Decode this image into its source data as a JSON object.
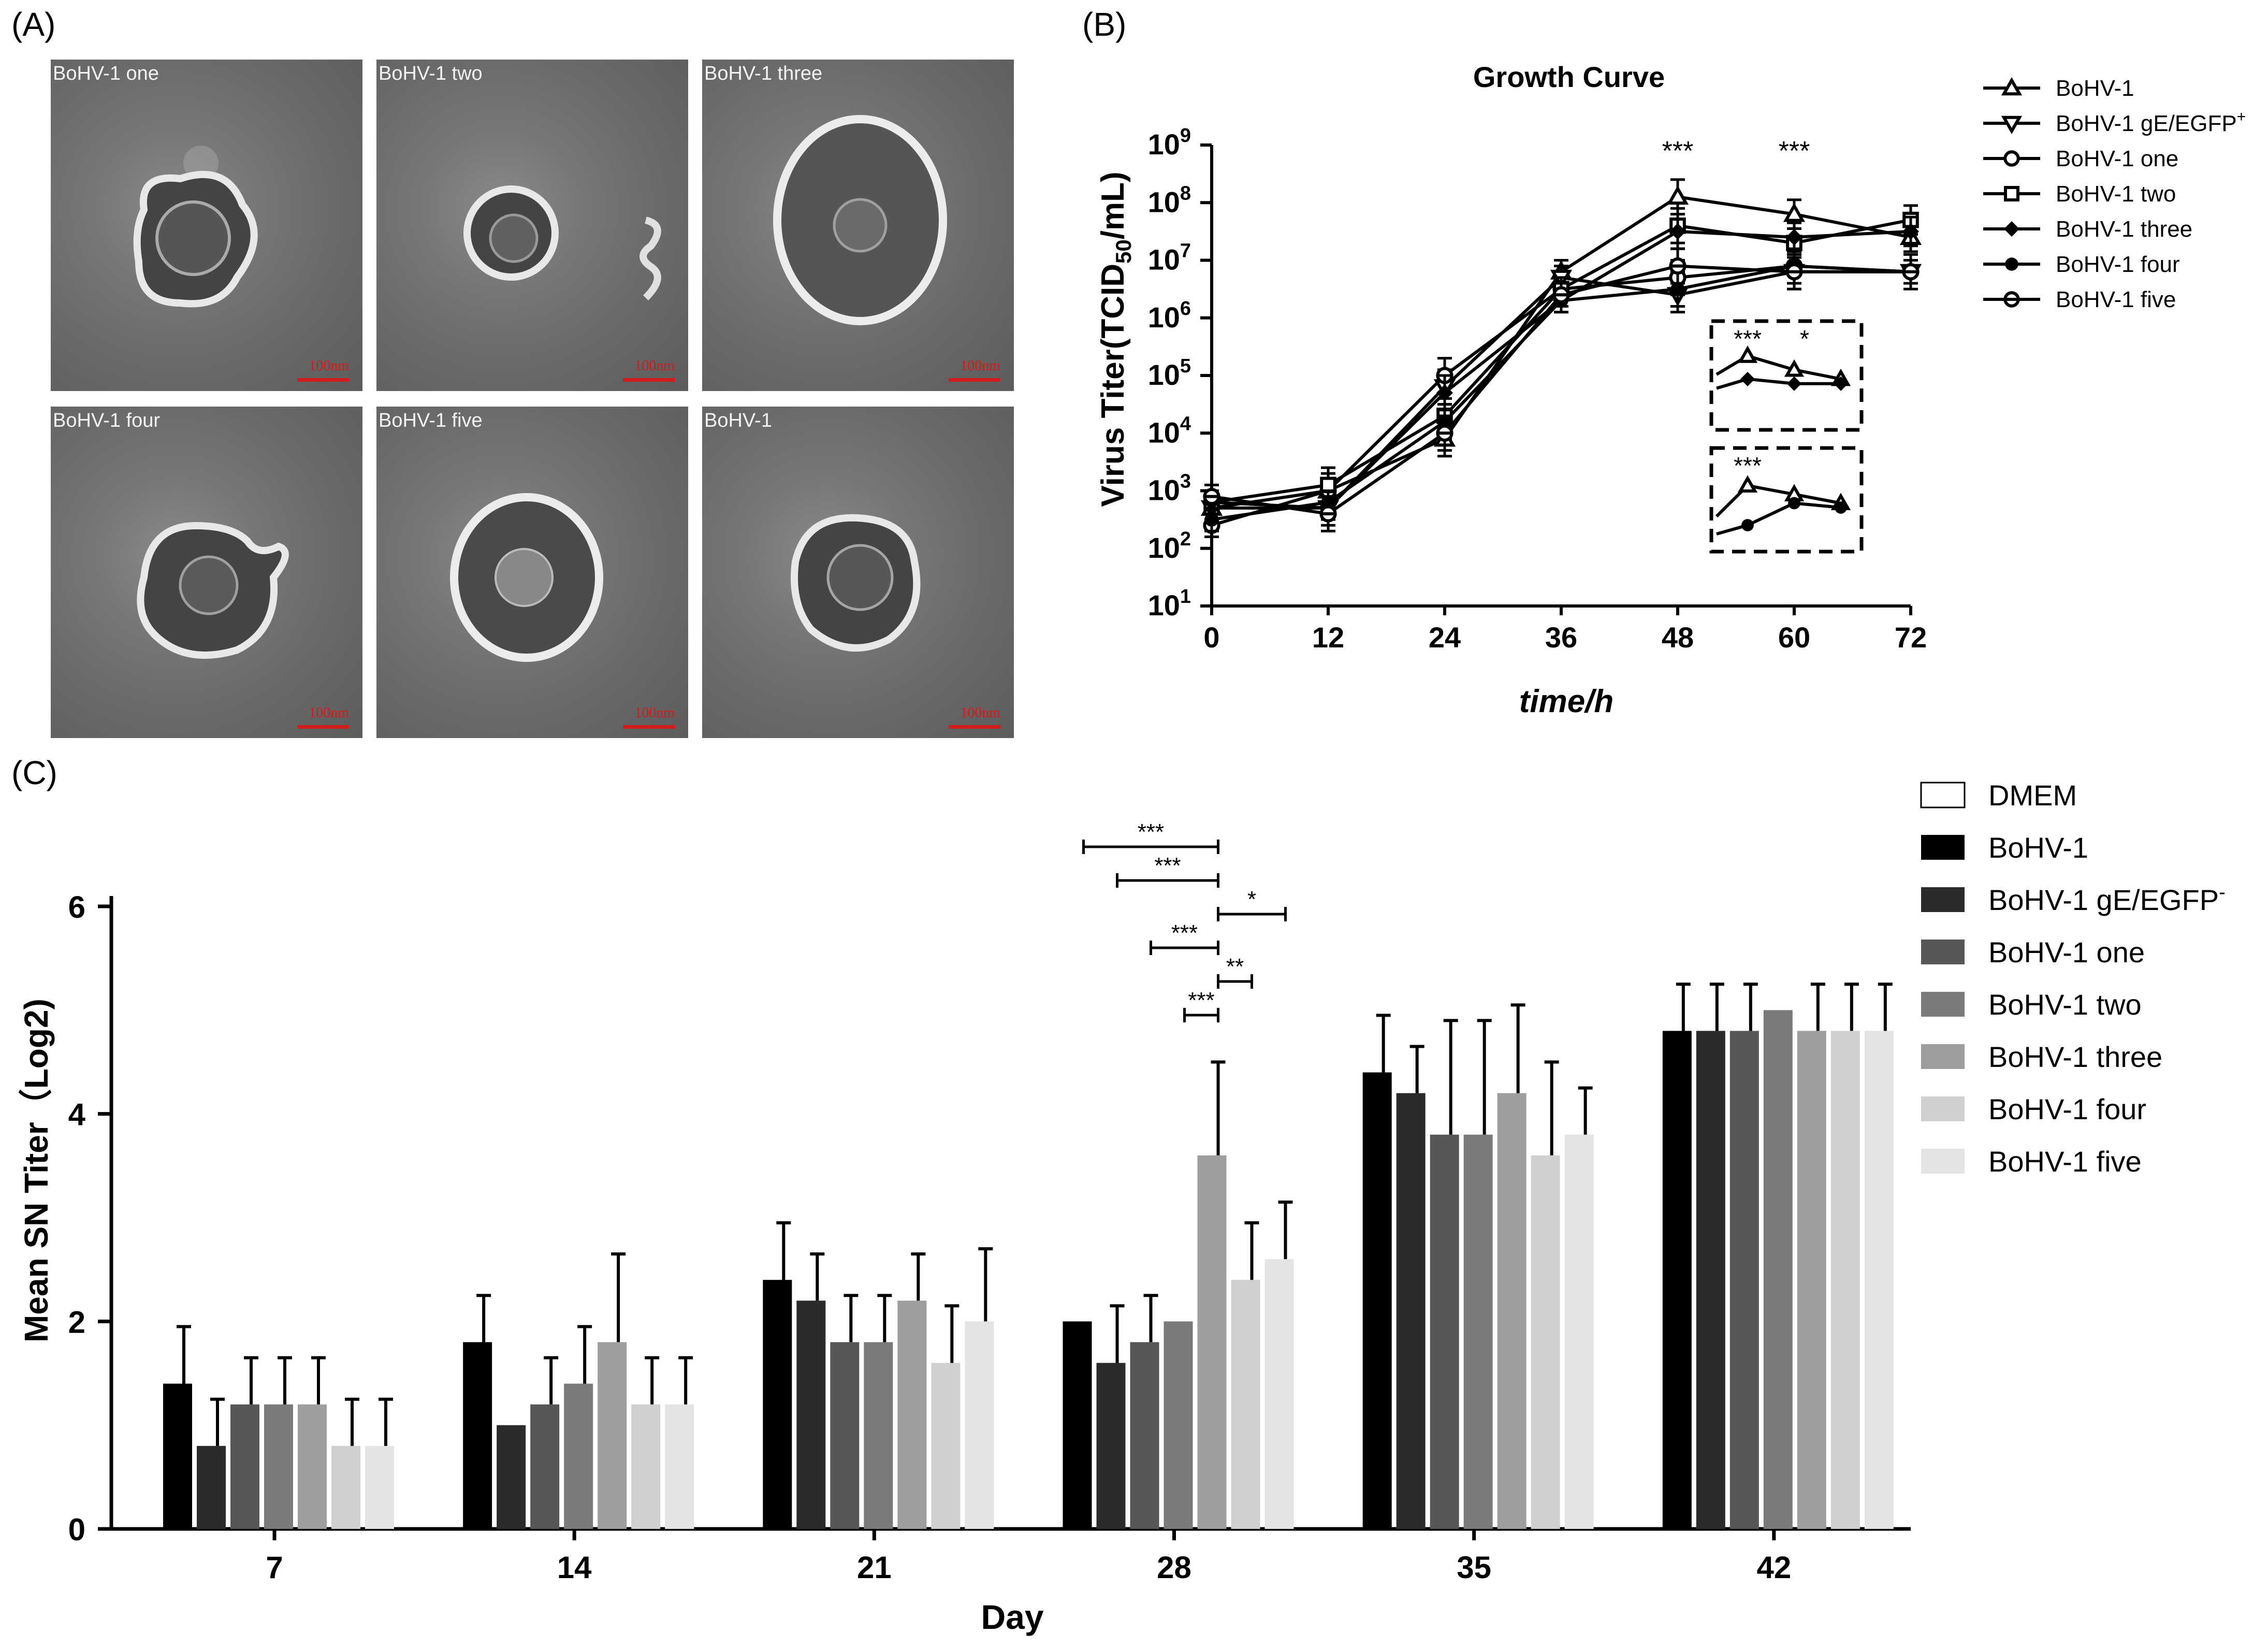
{
  "panels": {
    "a": {
      "label": "(A)",
      "images": [
        {
          "title": "BoHV-1 one",
          "scale": "100nm"
        },
        {
          "title": "BoHV-1 two",
          "scale": "100nm"
        },
        {
          "title": "BoHV-1 three",
          "scale": "100nm"
        },
        {
          "title": "BoHV-1 four",
          "scale": "100nm"
        },
        {
          "title": "BoHV-1 five",
          "scale": "100nm"
        },
        {
          "title": "BoHV-1",
          "scale": "100nm"
        }
      ]
    },
    "b": {
      "label": "(B)"
    },
    "c": {
      "label": "(C)"
    }
  },
  "chart_data": [
    {
      "type": "line",
      "title": "Growth Curve",
      "xlabel": "time/h",
      "ylabel": "Virus Titer(TCID50/mL)",
      "ylabel_parts": {
        "main": "Virus Titer(TCID",
        "sub": "50",
        "tail": "/mL)"
      },
      "yscale": "log10",
      "x": [
        0,
        12,
        24,
        36,
        48,
        60,
        72
      ],
      "xticks": [
        "0",
        "12",
        "24",
        "36",
        "48",
        "60",
        "72"
      ],
      "yticks": [
        {
          "base": "10",
          "exp": "1"
        },
        {
          "base": "10",
          "exp": "2"
        },
        {
          "base": "10",
          "exp": "3"
        },
        {
          "base": "10",
          "exp": "4"
        },
        {
          "base": "10",
          "exp": "5"
        },
        {
          "base": "10",
          "exp": "6"
        },
        {
          "base": "10",
          "exp": "7"
        },
        {
          "base": "10",
          "exp": "8"
        },
        {
          "base": "10",
          "exp": "9"
        }
      ],
      "ylim_log10": [
        1,
        9
      ],
      "legend_position": "right",
      "series": [
        {
          "name": "BoHV-1",
          "sup": "",
          "marker": "triangle-up-open",
          "log_values": [
            2.7,
            3.0,
            3.9,
            6.8,
            8.1,
            7.8,
            7.4
          ],
          "err": [
            0.2,
            0.3,
            0.3,
            0.2,
            0.3,
            0.25,
            0.25
          ]
        },
        {
          "name": "BoHV-1 gE/EGFP",
          "sup": "+",
          "marker": "triangle-down-open",
          "log_values": [
            2.7,
            2.7,
            4.8,
            6.7,
            6.4,
            6.8,
            6.8
          ],
          "err": [
            0.2,
            0.3,
            0.3,
            0.2,
            0.3,
            0.3,
            0.2
          ]
        },
        {
          "name": "BoHV-1 one",
          "sup": "",
          "marker": "circle-open",
          "log_values": [
            2.4,
            3.0,
            5.0,
            6.5,
            6.7,
            6.9,
            6.8
          ],
          "err": [
            0.2,
            0.2,
            0.3,
            0.2,
            0.3,
            0.3,
            0.3
          ]
        },
        {
          "name": "BoHV-1 two",
          "sup": "",
          "marker": "square-open",
          "log_values": [
            2.8,
            3.1,
            4.3,
            6.5,
            7.6,
            7.3,
            7.7
          ],
          "err": [
            0.2,
            0.3,
            0.3,
            0.2,
            0.3,
            0.25,
            0.25
          ]
        },
        {
          "name": "BoHV-1 three",
          "sup": "",
          "marker": "diamond-filled",
          "log_values": [
            2.8,
            2.7,
            4.7,
            6.3,
            7.5,
            7.4,
            7.5
          ],
          "err": [
            0.2,
            0.2,
            0.3,
            0.2,
            0.3,
            0.25,
            0.25
          ]
        },
        {
          "name": "BoHV-1 four",
          "sup": "",
          "marker": "circle-filled",
          "log_values": [
            2.5,
            2.8,
            4.2,
            6.3,
            6.5,
            6.9,
            6.8
          ],
          "err": [
            0.2,
            0.2,
            0.3,
            0.2,
            0.3,
            0.3,
            0.2
          ]
        },
        {
          "name": "BoHV-1 five",
          "sup": "",
          "marker": "circle-half",
          "log_values": [
            2.9,
            2.6,
            4.0,
            6.4,
            6.9,
            6.8,
            6.8
          ],
          "err": [
            0.2,
            0.3,
            0.3,
            0.2,
            0.3,
            0.3,
            0.2
          ]
        }
      ],
      "annotations": [
        {
          "text": "***",
          "x": 48
        },
        {
          "text": "***",
          "x": 60
        }
      ],
      "insets": [
        {
          "name": "upper-inset",
          "labels": [
            {
              "text": "***"
            },
            {
              "text": "*"
            }
          ],
          "pts_a": [
            0.6,
            0.8,
            0.65,
            0.55
          ],
          "pts_b": [
            0.45,
            0.55,
            0.5,
            0.5
          ]
        },
        {
          "name": "lower-inset",
          "labels": [
            {
              "text": "***"
            }
          ],
          "pts_a": [
            0.4,
            0.75,
            0.65,
            0.55
          ],
          "pts_b": [
            0.2,
            0.3,
            0.55,
            0.5
          ]
        }
      ]
    },
    {
      "type": "bar",
      "title": "",
      "xlabel": "Day",
      "ylabel": "Mean SN Titer（Log2)",
      "ylim": [
        0,
        6
      ],
      "yticks": [
        0,
        2,
        4,
        6
      ],
      "categories": [
        "7",
        "14",
        "21",
        "28",
        "35",
        "42"
      ],
      "legend_position": "right",
      "series": [
        {
          "name": "DMEM",
          "sup": "",
          "color": "#ffffff",
          "values": [
            0,
            0,
            0,
            0,
            0,
            0
          ],
          "err": [
            0,
            0,
            0,
            0,
            0,
            0
          ]
        },
        {
          "name": "BoHV-1",
          "sup": "",
          "color": "#000000",
          "values": [
            1.4,
            1.8,
            2.4,
            2.0,
            4.4,
            4.8
          ],
          "err": [
            0.55,
            0.45,
            0.55,
            0,
            0.55,
            0.45
          ]
        },
        {
          "name": "BoHV-1 gE/EGFP",
          "sup": "-",
          "color": "#2b2b2b",
          "values": [
            0.8,
            1.0,
            2.2,
            1.6,
            4.2,
            4.8
          ],
          "err": [
            0.45,
            0,
            0.45,
            0.55,
            0.45,
            0.45
          ]
        },
        {
          "name": "BoHV-1 one",
          "sup": "",
          "color": "#575757",
          "values": [
            1.2,
            1.2,
            1.8,
            1.8,
            3.8,
            4.8
          ],
          "err": [
            0.45,
            0.45,
            0.45,
            0.45,
            1.1,
            0.45
          ]
        },
        {
          "name": "BoHV-1 two",
          "sup": "",
          "color": "#7a7a7a",
          "values": [
            1.2,
            1.4,
            1.8,
            2.0,
            3.8,
            5.0
          ],
          "err": [
            0.45,
            0.55,
            0.45,
            0,
            1.1,
            0
          ]
        },
        {
          "name": "BoHV-1 three",
          "sup": "",
          "color": "#9d9d9d",
          "values": [
            1.2,
            1.8,
            2.2,
            3.6,
            4.2,
            4.8
          ],
          "err": [
            0.45,
            0.85,
            0.45,
            0.9,
            0.85,
            0.45
          ]
        },
        {
          "name": "BoHV-1 four",
          "sup": "",
          "color": "#cfcfcf",
          "values": [
            0.8,
            1.2,
            1.6,
            2.4,
            3.6,
            4.8
          ],
          "err": [
            0.45,
            0.45,
            0.55,
            0.55,
            0.9,
            0.45
          ]
        },
        {
          "name": "BoHV-1 five",
          "sup": "",
          "color": "#e4e4e4",
          "values": [
            0.8,
            1.2,
            2.0,
            2.6,
            3.8,
            4.8
          ],
          "err": [
            0.45,
            0.45,
            0.7,
            0.55,
            0.45,
            0.45
          ]
        }
      ],
      "significance": [
        {
          "text": "***",
          "day": "28",
          "from_series": 1,
          "to_series": 5,
          "tier": 5
        },
        {
          "text": "***",
          "day": "28",
          "from_series": 2,
          "to_series": 5,
          "tier": 4
        },
        {
          "text": "*",
          "day": "28",
          "from_series": 5,
          "to_series": 7,
          "tier": 3
        },
        {
          "text": "***",
          "day": "28",
          "from_series": 3,
          "to_series": 5,
          "tier": 2
        },
        {
          "text": "**",
          "day": "28",
          "from_series": 5,
          "to_series": 6,
          "tier": 1
        },
        {
          "text": "***",
          "day": "28",
          "from_series": 4,
          "to_series": 5,
          "tier": 0
        }
      ]
    }
  ]
}
